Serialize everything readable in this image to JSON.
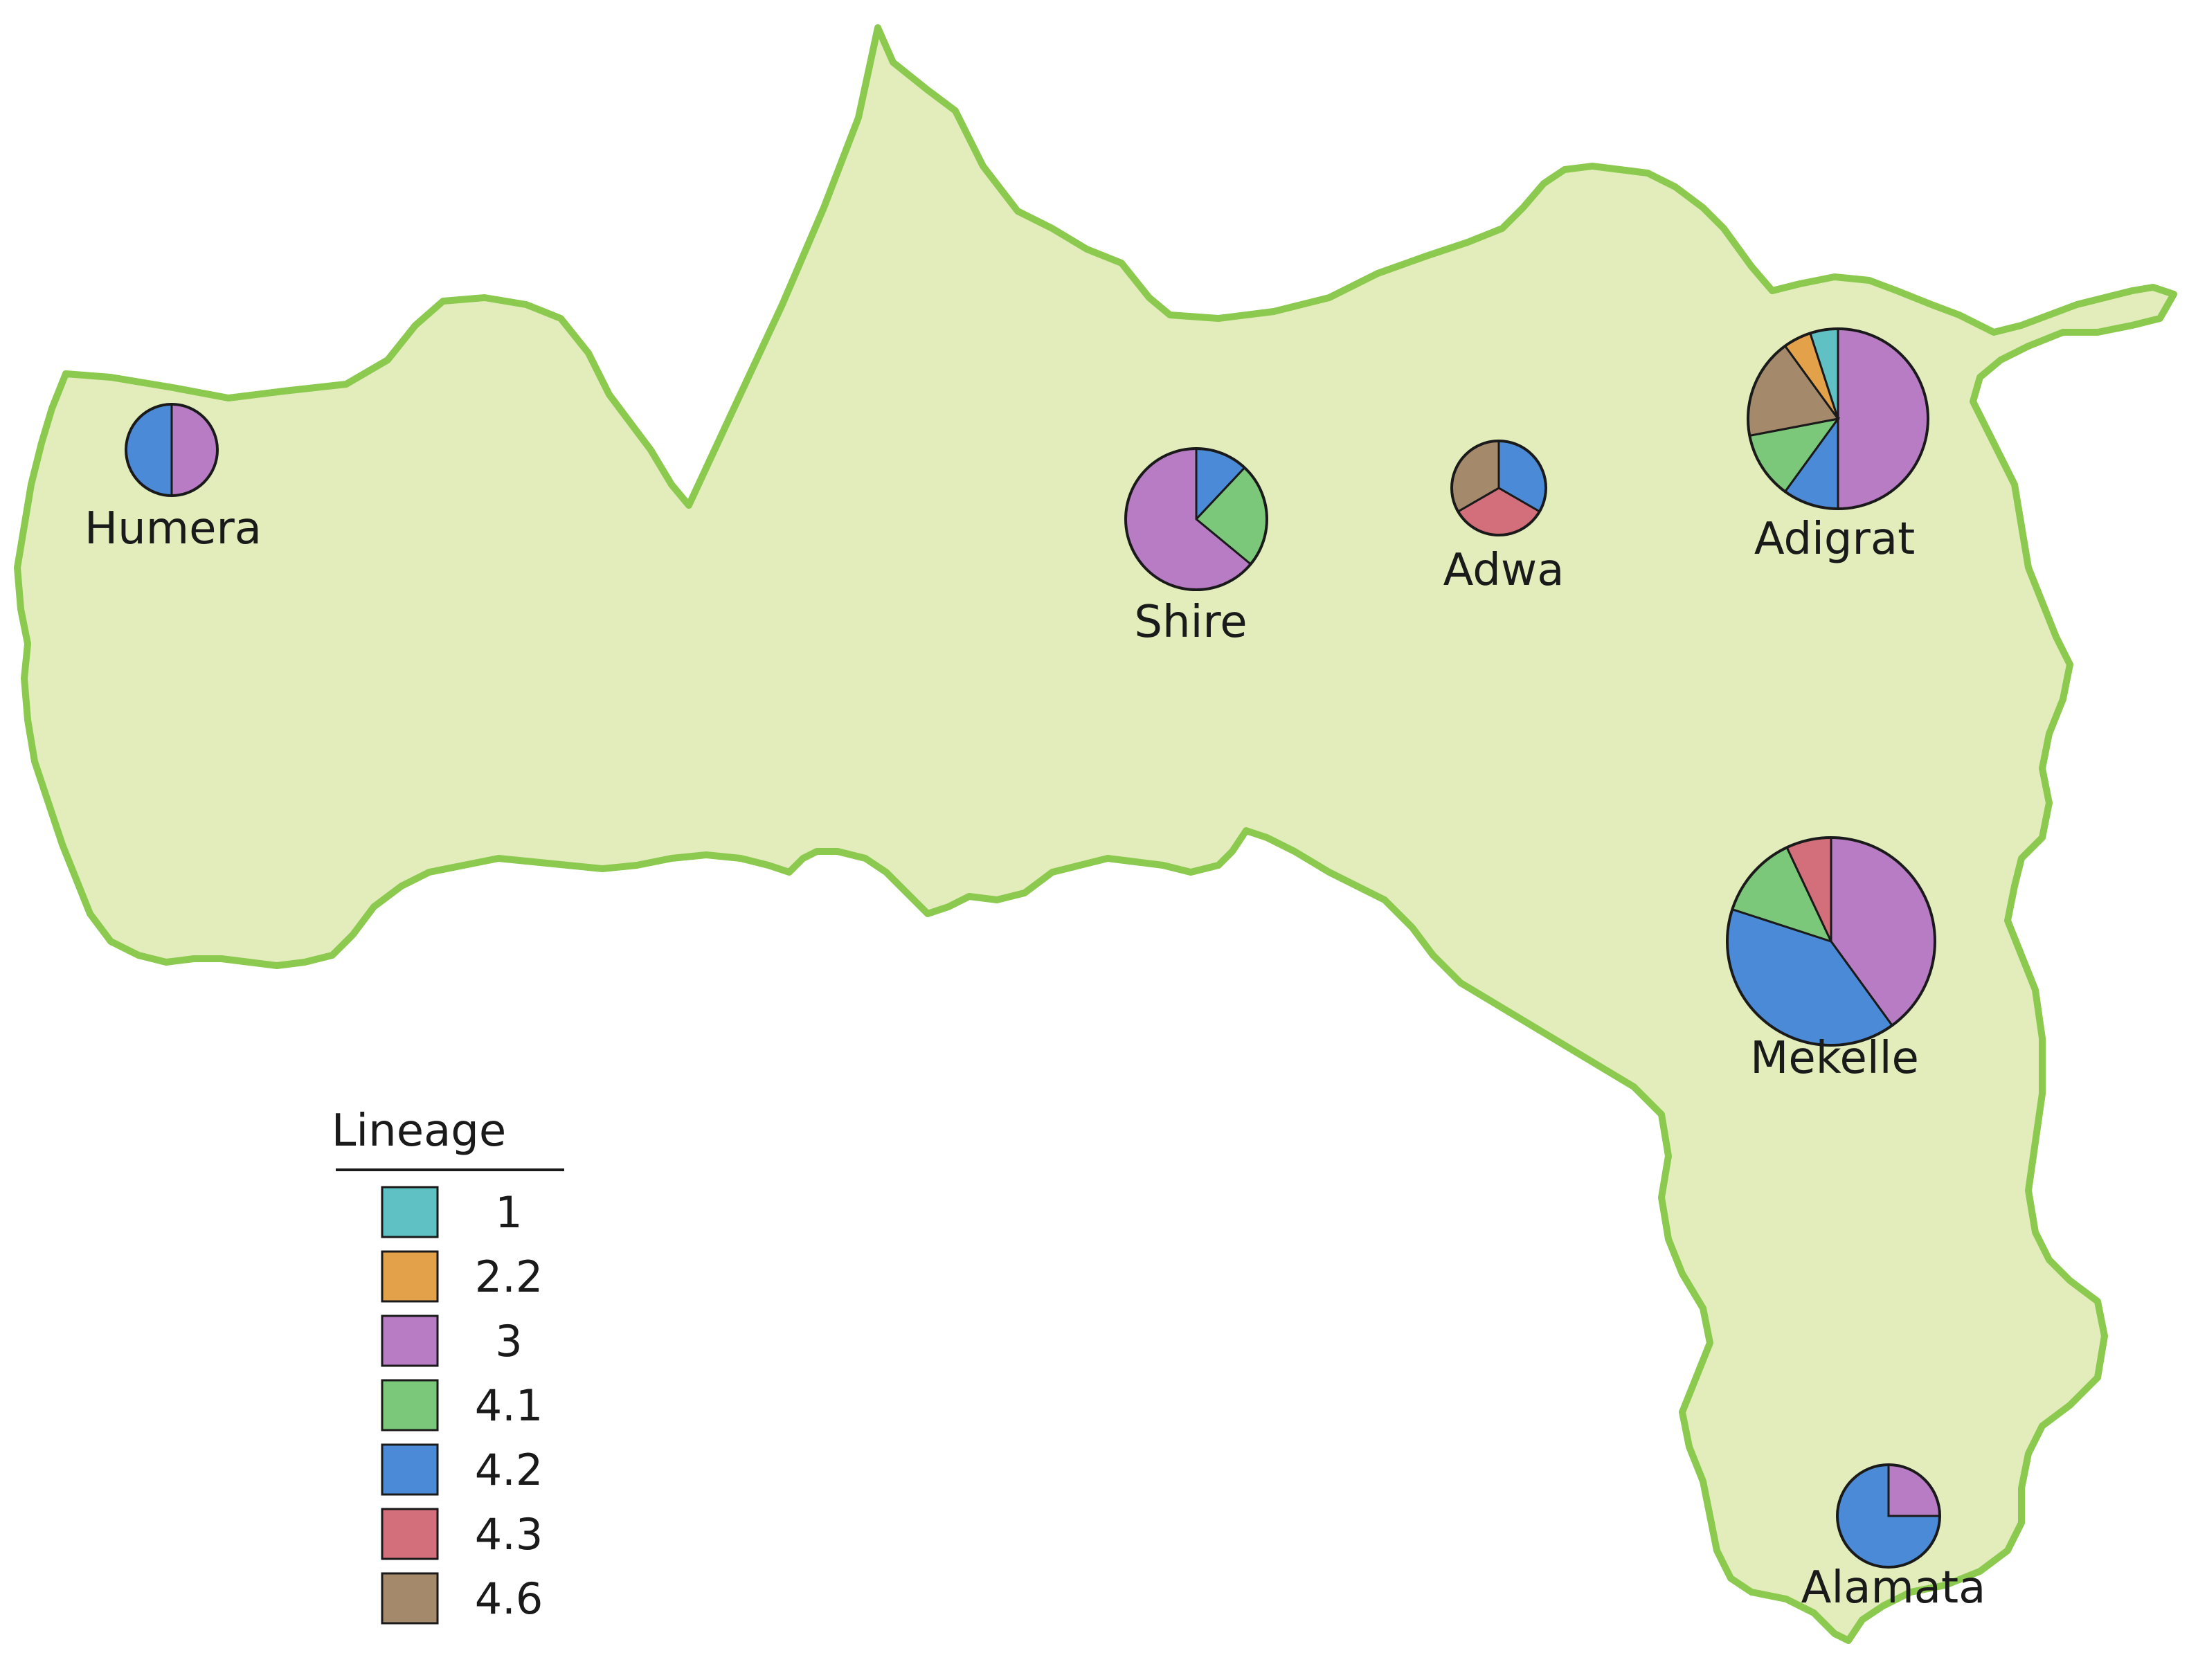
{
  "legend": {
    "title": "Lineage",
    "items": [
      {
        "id": "1",
        "label": "1",
        "color": "#5fc1c3"
      },
      {
        "id": "2.2",
        "label": "2.2",
        "color": "#e3a24a"
      },
      {
        "id": "3",
        "label": "3",
        "color": "#b87cc4"
      },
      {
        "id": "4.1",
        "label": "4.1",
        "color": "#7cc87a"
      },
      {
        "id": "4.2",
        "label": "4.2",
        "color": "#4a8ad6"
      },
      {
        "id": "4.3",
        "label": "4.3",
        "color": "#d26f7a"
      },
      {
        "id": "4.6",
        "label": "4.6",
        "color": "#a48a6a"
      }
    ]
  },
  "region": {
    "fill_color": "#e2edbb",
    "border_color": "#8cc94f"
  },
  "sites": [
    {
      "name": "Humera",
      "slices": [
        {
          "lineage": "3",
          "value": 1
        },
        {
          "lineage": "4.2",
          "value": 1
        }
      ]
    },
    {
      "name": "Shire",
      "slices": [
        {
          "lineage": "4.2",
          "value": 0.12
        },
        {
          "lineage": "4.1",
          "value": 0.24
        },
        {
          "lineage": "3",
          "value": 0.64
        }
      ]
    },
    {
      "name": "Adwa",
      "slices": [
        {
          "lineage": "4.2",
          "value": 1
        },
        {
          "lineage": "4.3",
          "value": 1
        },
        {
          "lineage": "4.6",
          "value": 1
        }
      ]
    },
    {
      "name": "Adigrat",
      "slices": [
        {
          "lineage": "3",
          "value": 0.5
        },
        {
          "lineage": "4.2",
          "value": 0.1
        },
        {
          "lineage": "4.1",
          "value": 0.12
        },
        {
          "lineage": "4.6",
          "value": 0.18
        },
        {
          "lineage": "2.2",
          "value": 0.05
        },
        {
          "lineage": "1",
          "value": 0.05
        }
      ]
    },
    {
      "name": "Mekelle",
      "slices": [
        {
          "lineage": "3",
          "value": 0.4
        },
        {
          "lineage": "4.2",
          "value": 0.4
        },
        {
          "lineage": "4.1",
          "value": 0.13
        },
        {
          "lineage": "4.3",
          "value": 0.07
        }
      ]
    },
    {
      "name": "Alamata",
      "slices": [
        {
          "lineage": "3",
          "value": 0.25
        },
        {
          "lineage": "4.2",
          "value": 0.75
        }
      ]
    }
  ]
}
